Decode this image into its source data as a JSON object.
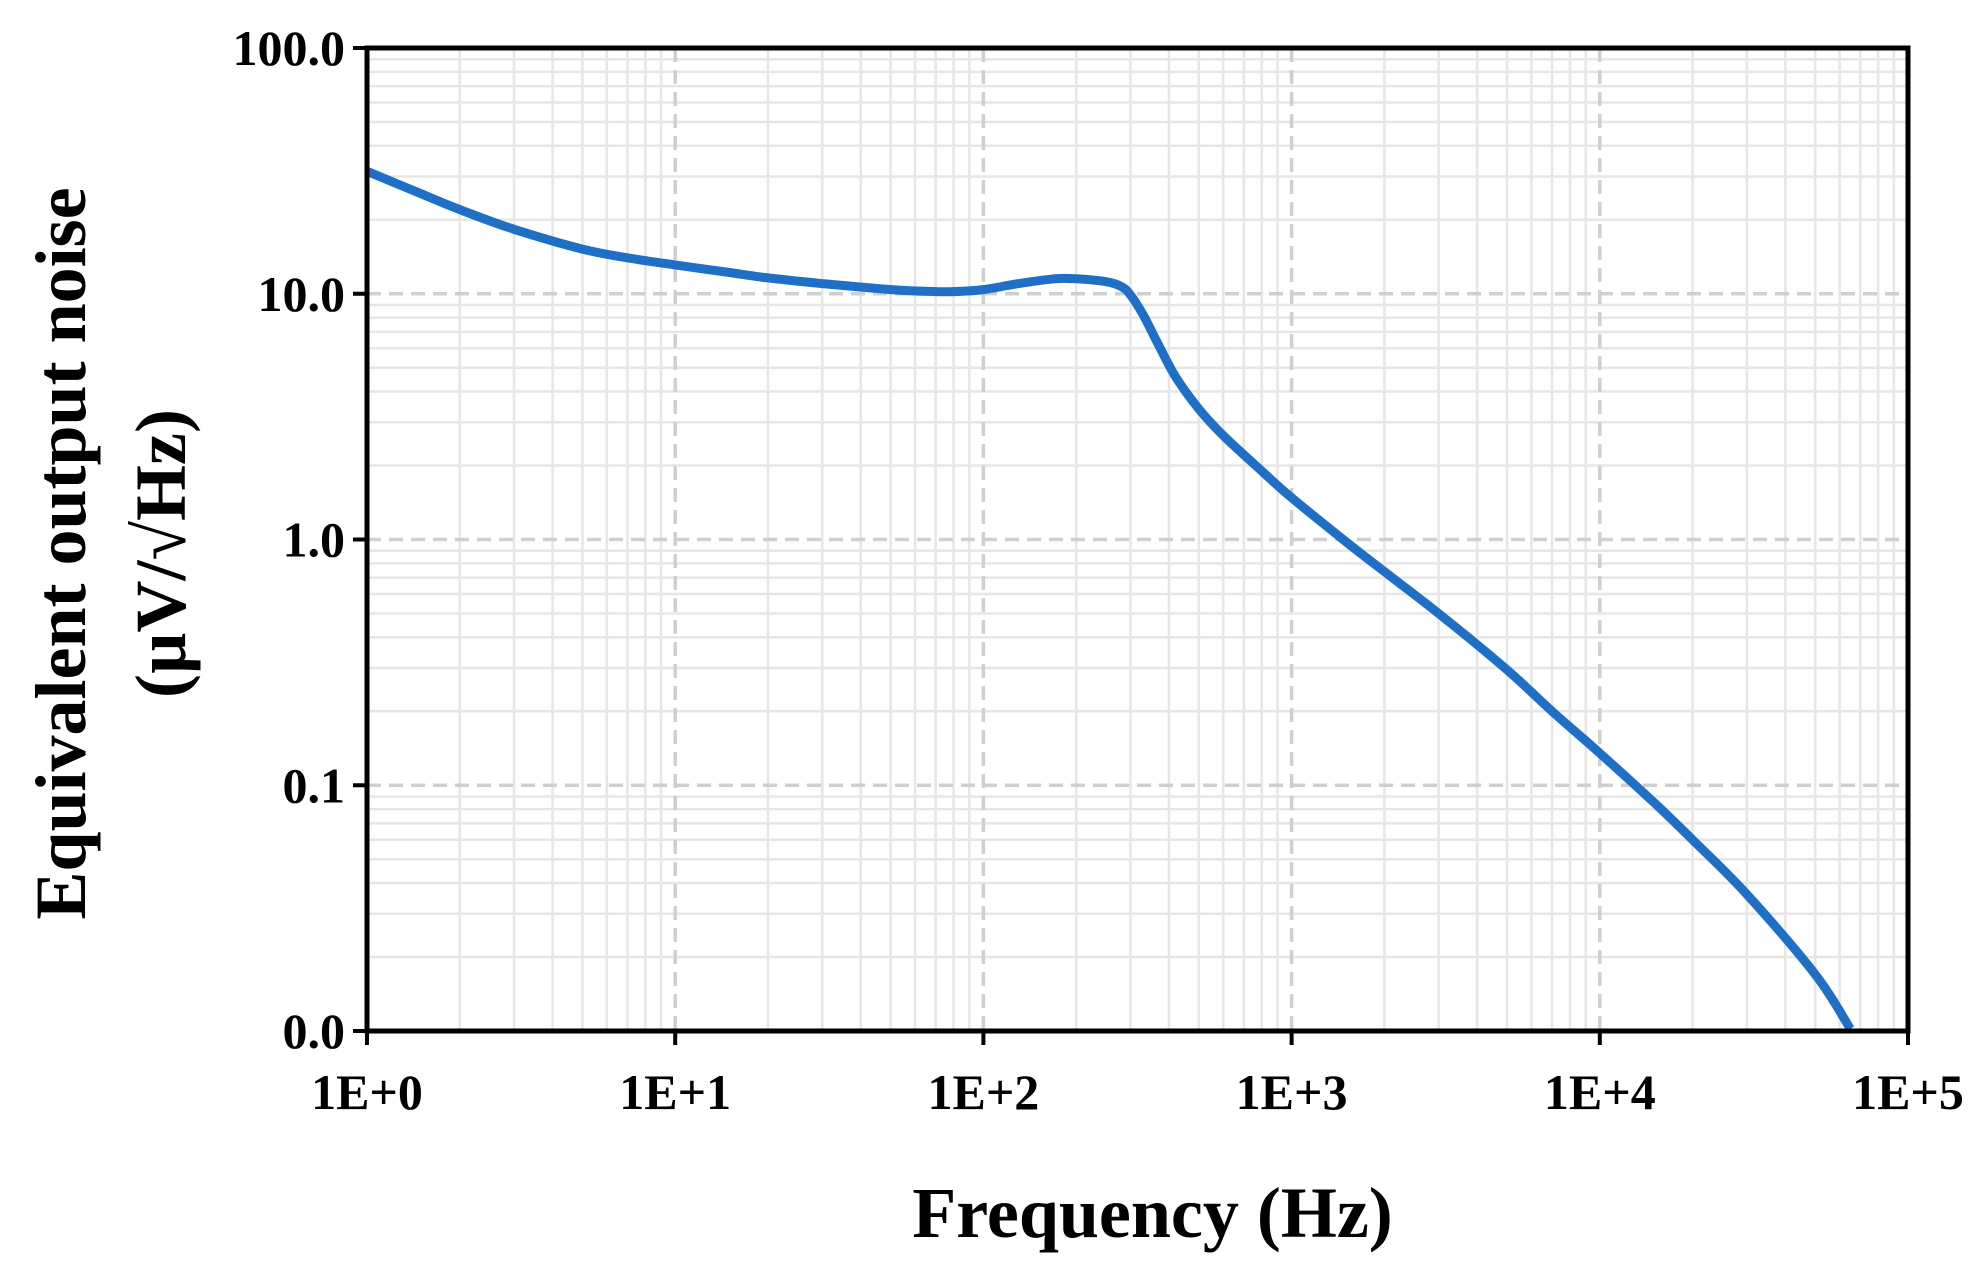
{
  "chart_data": {
    "type": "line",
    "title": "",
    "xlabel": "Frequency (Hz)",
    "ylabel_lines": [
      "Equivalent output noise",
      "(µV/√Hz)"
    ],
    "x_scale": "log",
    "y_scale": "log",
    "xlim": [
      1,
      100000
    ],
    "ylim": [
      0.01,
      100
    ],
    "x_ticks": [
      {
        "value": 1,
        "label": "1E+0"
      },
      {
        "value": 10,
        "label": "1E+1"
      },
      {
        "value": 100,
        "label": "1E+2"
      },
      {
        "value": 1000,
        "label": "1E+3"
      },
      {
        "value": 10000,
        "label": "1E+4"
      },
      {
        "value": 100000,
        "label": "1E+5"
      }
    ],
    "y_ticks": [
      {
        "value": 0.01,
        "label": "0.0"
      },
      {
        "value": 0.1,
        "label": "0.1"
      },
      {
        "value": 1,
        "label": "1.0"
      },
      {
        "value": 10,
        "label": "10.0"
      },
      {
        "value": 100,
        "label": "100.0"
      }
    ],
    "grid": {
      "major": true,
      "minor": true
    },
    "legend": "none",
    "series": [
      {
        "color": "#1f6fc6",
        "x": [
          1,
          1.5,
          2,
          3,
          5,
          7,
          10,
          15,
          20,
          30,
          50,
          70,
          80,
          100,
          130,
          170,
          200,
          250,
          280,
          300,
          330,
          370,
          420,
          500,
          600,
          800,
          1000,
          1500,
          2000,
          3000,
          5000,
          7000,
          10000,
          15000,
          20000,
          30000,
          50000,
          65000
        ],
        "y": [
          31.5,
          25.5,
          22,
          18.3,
          15.2,
          14,
          13.1,
          12.2,
          11.6,
          11,
          10.4,
          10.2,
          10.2,
          10.4,
          11,
          11.5,
          11.5,
          11.2,
          10.7,
          9.9,
          8.2,
          6.2,
          4.6,
          3.4,
          2.65,
          1.9,
          1.48,
          0.98,
          0.74,
          0.5,
          0.295,
          0.2,
          0.135,
          0.085,
          0.06,
          0.036,
          0.017,
          0.0102
        ]
      }
    ]
  }
}
